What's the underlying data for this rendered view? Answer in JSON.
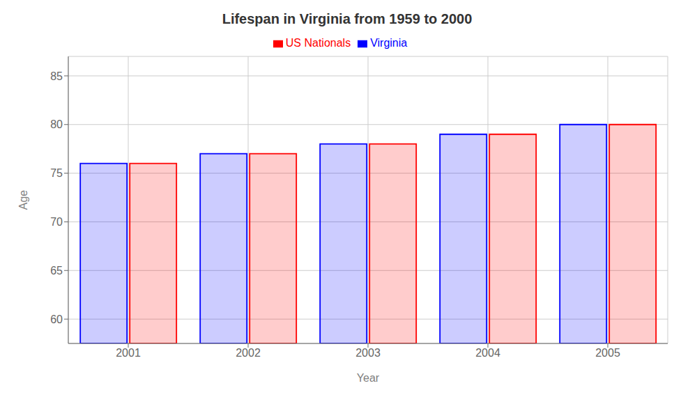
{
  "chart_data": {
    "type": "bar",
    "title": "Lifespan in Virginia from 1959 to 2000",
    "x_label": "Year",
    "y_label": "Age",
    "categories": [
      "2001",
      "2002",
      "2003",
      "2004",
      "2005"
    ],
    "series": [
      {
        "name": "Virginia",
        "color": "#0000ff",
        "values": [
          76,
          77,
          78,
          79,
          80
        ]
      },
      {
        "name": "US Nationals",
        "color": "#ff0000",
        "values": [
          76,
          77,
          78,
          79,
          80
        ]
      }
    ],
    "ylim": [
      57.5,
      87
    ],
    "yticks": [
      60,
      65,
      70,
      75,
      80,
      85
    ],
    "grid": true,
    "legend": "top"
  }
}
